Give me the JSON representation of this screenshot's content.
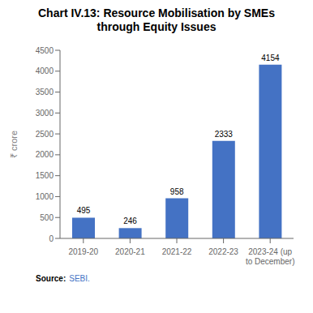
{
  "chart_data": {
    "type": "bar",
    "title": "Chart IV.13: Resource Mobilisation by SMEs\nthrough Equity Issues",
    "categories": [
      "2019-20",
      "2020-21",
      "2021-22",
      "2022-23",
      "2023-24 (up\nto December)"
    ],
    "values": [
      495,
      246,
      958,
      2333,
      4154
    ],
    "color": "#4472c4",
    "ylabel": "₹ crore",
    "ylim": [
      0,
      4500
    ],
    "yticks": [
      0,
      500,
      1000,
      1500,
      2000,
      2500,
      3000,
      3500,
      4000,
      4500
    ],
    "grid": false,
    "data_labels": true,
    "annotations": [
      {
        "text": "Source:"
      },
      {
        "text": "SEBI.",
        "color": "#4472c4"
      }
    ]
  }
}
